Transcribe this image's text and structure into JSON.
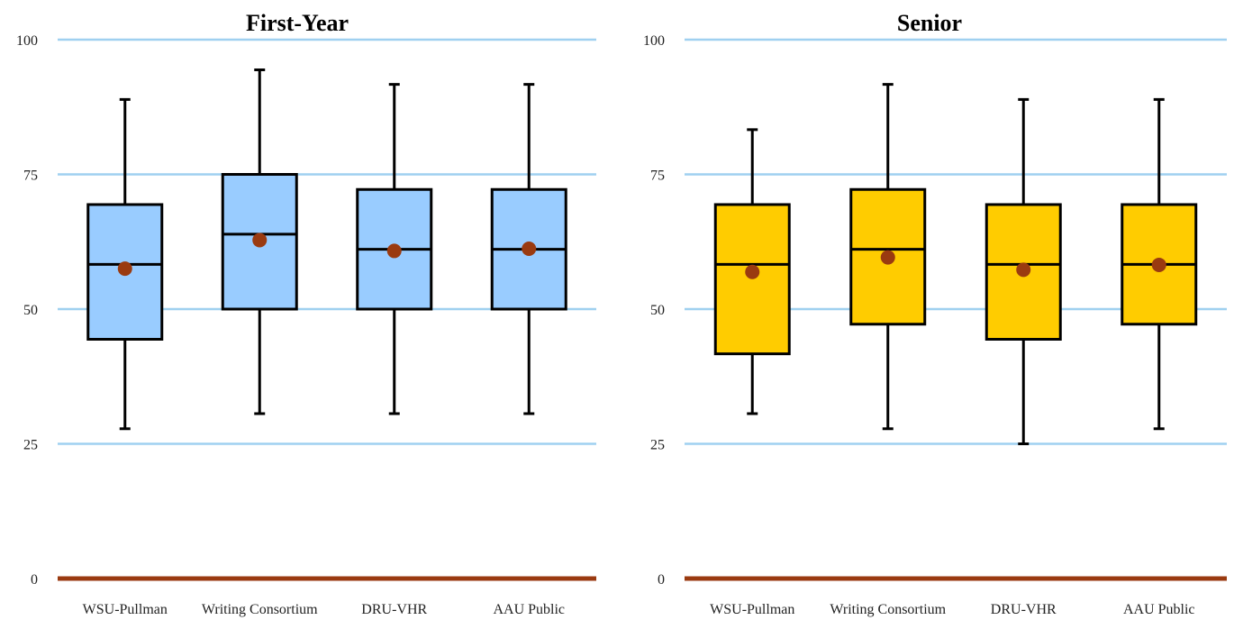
{
  "chart_data": [
    {
      "type": "boxplot",
      "title": "First-Year",
      "categories": [
        "WSU-Pullman",
        "Writing Consortium",
        "DRU-VHR",
        "AAU Public"
      ],
      "ylim": [
        0,
        100
      ],
      "yticks": [
        0,
        25,
        50,
        75,
        100
      ],
      "grid": true,
      "box_color": "#99ccff",
      "boxes": [
        {
          "category": "WSU-Pullman",
          "min": 27.8,
          "q1": 44.4,
          "median": 58.3,
          "q3": 69.4,
          "max": 88.9,
          "mean": 57.5
        },
        {
          "category": "Writing Consortium",
          "min": 30.6,
          "q1": 50.0,
          "median": 63.9,
          "q3": 75.0,
          "max": 94.4,
          "mean": 62.8
        },
        {
          "category": "DRU-VHR",
          "min": 30.6,
          "q1": 50.0,
          "median": 61.1,
          "q3": 72.2,
          "max": 91.7,
          "mean": 60.8
        },
        {
          "category": "AAU Public",
          "min": 30.6,
          "q1": 50.0,
          "median": 61.1,
          "q3": 72.2,
          "max": 91.7,
          "mean": 61.2
        }
      ]
    },
    {
      "type": "boxplot",
      "title": "Senior",
      "categories": [
        "WSU-Pullman",
        "Writing Consortium",
        "DRU-VHR",
        "AAU Public"
      ],
      "ylim": [
        0,
        100
      ],
      "yticks": [
        0,
        25,
        50,
        75,
        100
      ],
      "grid": true,
      "box_color": "#ffcc00",
      "boxes": [
        {
          "category": "WSU-Pullman",
          "min": 30.6,
          "q1": 41.7,
          "median": 58.3,
          "q3": 69.4,
          "max": 83.3,
          "mean": 56.9
        },
        {
          "category": "Writing Consortium",
          "min": 27.8,
          "q1": 47.2,
          "median": 61.1,
          "q3": 72.2,
          "max": 91.7,
          "mean": 59.6
        },
        {
          "category": "DRU-VHR",
          "min": 25.0,
          "q1": 44.4,
          "median": 58.3,
          "q3": 69.4,
          "max": 88.9,
          "mean": 57.3
        },
        {
          "category": "AAU Public",
          "min": 27.8,
          "q1": 47.2,
          "median": 58.3,
          "q3": 69.4,
          "max": 88.9,
          "mean": 58.2
        }
      ]
    }
  ],
  "colors": {
    "gridline": "#9fd0f0",
    "baseline": "#9a3a10",
    "mean_marker": "#9a3a10",
    "outline": "#000000"
  }
}
